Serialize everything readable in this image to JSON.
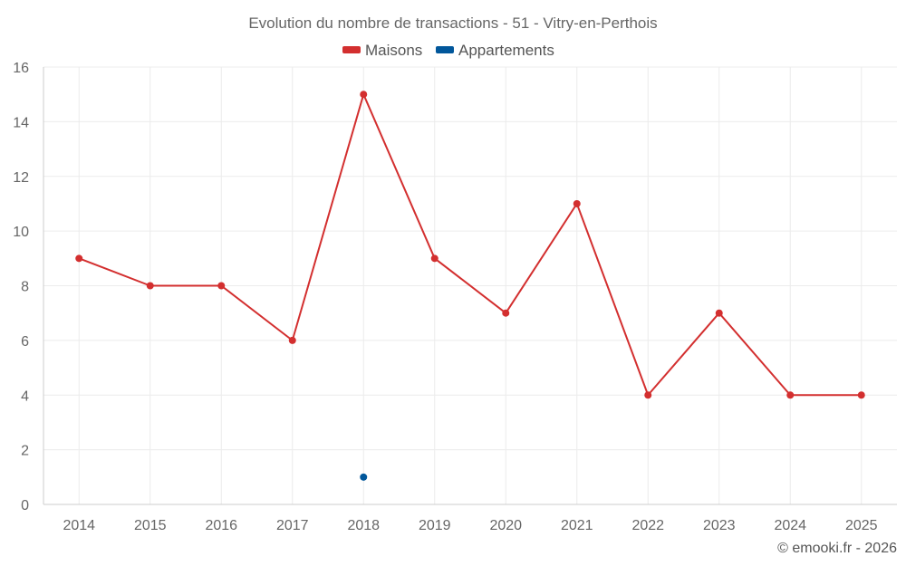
{
  "chart_data": {
    "type": "line",
    "title": "Evolution du nombre de transactions - 51 - Vitry-en-Perthois",
    "categories": [
      "2014",
      "2015",
      "2016",
      "2017",
      "2018",
      "2019",
      "2020",
      "2021",
      "2022",
      "2023",
      "2024",
      "2025"
    ],
    "series": [
      {
        "name": "Maisons",
        "color": "#d32f2f",
        "values": [
          9,
          8,
          8,
          6,
          15,
          9,
          7,
          11,
          4,
          7,
          4,
          4
        ]
      },
      {
        "name": "Appartements",
        "color": "#01579b",
        "values": [
          null,
          null,
          null,
          null,
          1,
          null,
          null,
          null,
          null,
          null,
          null,
          null
        ]
      }
    ],
    "ylim": [
      0,
      16
    ],
    "yticks": [
      0,
      2,
      4,
      6,
      8,
      10,
      12,
      14,
      16
    ],
    "xlabel": "",
    "ylabel": "",
    "grid": true,
    "legend_position": "top-center"
  },
  "footer": {
    "credit": "© emooki.fr - 2026"
  }
}
